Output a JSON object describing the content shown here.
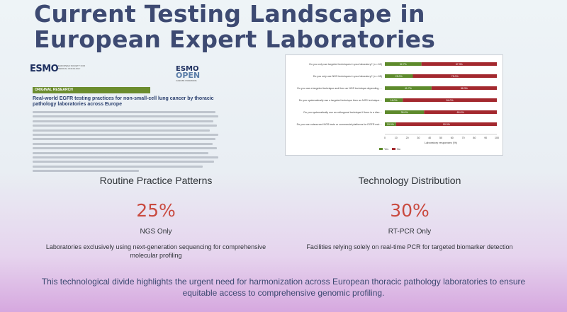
{
  "title": {
    "line1": "Current Testing Landscape in",
    "line2": "European Expert Laboratories"
  },
  "paper": {
    "logo_left": "ESMO",
    "logo_left_sub": "EUROPEAN SOCIETY FOR MEDICAL ONCOLOGY",
    "logo_right_line1": "ESMO",
    "logo_right_line2": "OPEN",
    "logo_right_sub": "CANCER HORIZONS",
    "tag": "ORIGINAL RESEARCH",
    "title": "Real-world EGFR testing practices for non-small-cell lung cancer by thoracic pathology laboratories across Europe"
  },
  "mini_chart": {
    "questions": [
      "Do you only use targeted techniques in your laboratory? (n = 62)",
      "Do you only use NGS techniques in your laboratory? (n = 65)",
      "Do you use a targeted technique and then an NGS technique depending on the case? (n = 51)",
      "Do you systematically use a targeted technique then an NGS technique? (n = 48)",
      "Do you systematically use an orthogonal technique if there is a discrepancy between the results of targeted sequencing and NGS sequencing? (n = 48)",
      "Do you use outsourced NGS tests or commercial platforms for EGFR mutations? (n = 50)"
    ],
    "yes_pct": [
      32.7,
      25.0,
      41.7,
      16.0,
      35.0,
      10.0
    ],
    "no_pct": [
      67.3,
      75.0,
      58.3,
      84.0,
      65.0,
      90.0
    ],
    "yes_labels": [
      "32.7%",
      "25.0%",
      "41.7%",
      "16.0%",
      "35.0%",
      "10.0%"
    ],
    "no_labels": [
      "67.3%",
      "75.0%",
      "58.3%",
      "84.0%",
      "65.0%",
      "90.0%"
    ],
    "x_ticks": [
      "0",
      "10",
      "20",
      "30",
      "40",
      "50",
      "60",
      "70",
      "80",
      "90",
      "100"
    ],
    "xlabel": "Laboratory responses (%)",
    "legend": [
      "Yes",
      "No"
    ],
    "colors": {
      "yes": "#5d8a2b",
      "no": "#a3282e"
    }
  },
  "stats": {
    "left": {
      "heading": "Routine Practice Patterns",
      "value": "25%",
      "label": "NGS Only",
      "description": "Laboratories exclusively using next-generation sequencing for comprehensive molecular profiling"
    },
    "right": {
      "heading": "Technology Distribution",
      "value": "30%",
      "label": "RT-PCR Only",
      "description": "Facilities relying solely on real-time PCR for targeted biomarker detection"
    }
  },
  "footer": {
    "text": "This technological divide highlights the urgent need for harmonization across European thoracic pathology laboratories to ensure equitable access to comprehensive genomic profiling."
  },
  "colors": {
    "title": "#3d4a72",
    "stat_value": "#c94a3f"
  }
}
